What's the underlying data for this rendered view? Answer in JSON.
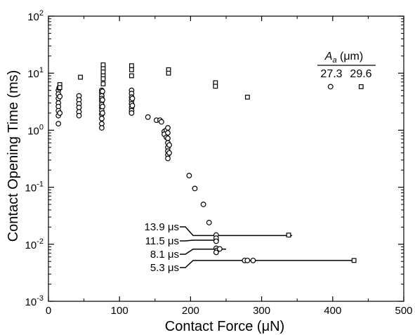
{
  "chart_data": {
    "type": "scatter",
    "xlabel": "Contact Force (μN)",
    "ylabel": "Contact Opening Time (ms)",
    "xlim": [
      0,
      500
    ],
    "ylim": [
      0.001,
      100
    ],
    "yscale": "log",
    "grid": false,
    "x_ticks": [
      {
        "value": 0,
        "label": "0"
      },
      {
        "value": 100,
        "label": "100"
      },
      {
        "value": 200,
        "label": "200"
      },
      {
        "value": 300,
        "label": "300"
      },
      {
        "value": 400,
        "label": "400"
      },
      {
        "value": 500,
        "label": "500"
      }
    ],
    "y_ticks": [
      {
        "value": 0.001,
        "base": "10",
        "exp": "-3"
      },
      {
        "value": 0.01,
        "base": "10",
        "exp": "-2"
      },
      {
        "value": 0.1,
        "base": "10",
        "exp": "-1"
      },
      {
        "value": 1,
        "base": "10",
        "exp": "0"
      },
      {
        "value": 10,
        "base": "10",
        "exp": "1"
      },
      {
        "value": 100,
        "base": "10",
        "exp": "2"
      }
    ],
    "legend": {
      "placement": "top-right",
      "title_italic": "A",
      "title_sub": "a",
      "title_unit": " (μm)",
      "entries": [
        {
          "label": "27.3",
          "marker": "circle"
        },
        {
          "label": "29.6",
          "marker": "square"
        }
      ]
    },
    "series": [
      {
        "marker": "circle",
        "points": [
          [
            14,
            5.0
          ],
          [
            14,
            4.3
          ],
          [
            14,
            3.6
          ],
          [
            14,
            3.0
          ],
          [
            14,
            2.6
          ],
          [
            14,
            2.2
          ],
          [
            14,
            1.8
          ],
          [
            14,
            1.3
          ],
          [
            15,
            5.5
          ],
          [
            16,
            3.9
          ],
          [
            16,
            2.0
          ],
          [
            43,
            4.0
          ],
          [
            43,
            3.4
          ],
          [
            43,
            2.9
          ],
          [
            43,
            2.5
          ],
          [
            43,
            2.1
          ],
          [
            43,
            1.8
          ],
          [
            75,
            5.0
          ],
          [
            75,
            4.5
          ],
          [
            75,
            4.0
          ],
          [
            75,
            3.6
          ],
          [
            75,
            3.2
          ],
          [
            75,
            2.8
          ],
          [
            75,
            2.5
          ],
          [
            75,
            2.2
          ],
          [
            75,
            1.9
          ],
          [
            75,
            1.6
          ],
          [
            75,
            1.3
          ],
          [
            75,
            1.1
          ],
          [
            76,
            4.8
          ],
          [
            76,
            3.4
          ],
          [
            76,
            2.6
          ],
          [
            76,
            2.0
          ],
          [
            117,
            5.0
          ],
          [
            117,
            4.4
          ],
          [
            117,
            3.8
          ],
          [
            117,
            3.3
          ],
          [
            117,
            2.9
          ],
          [
            117,
            2.5
          ],
          [
            117,
            2.2
          ],
          [
            117,
            2.0
          ],
          [
            118,
            3.6
          ],
          [
            118,
            2.7
          ],
          [
            140,
            1.7
          ],
          [
            152,
            1.5
          ],
          [
            157,
            1.5
          ],
          [
            159,
            1.4
          ],
          [
            163,
            0.95
          ],
          [
            163,
            0.85
          ],
          [
            166,
            1.0
          ],
          [
            166,
            0.75
          ],
          [
            168,
            1.1
          ],
          [
            168,
            0.9
          ],
          [
            168,
            0.72
          ],
          [
            168,
            0.6
          ],
          [
            168,
            0.5
          ],
          [
            168,
            0.43
          ],
          [
            168,
            0.37
          ],
          [
            168,
            0.32
          ],
          [
            170,
            0.55
          ],
          [
            170,
            0.4
          ],
          [
            198,
            0.16
          ],
          [
            206,
            0.095
          ],
          [
            218,
            0.05
          ],
          [
            226,
            0.024
          ],
          [
            236,
            0.0145
          ],
          [
            236,
            0.0128
          ],
          [
            236,
            0.0113
          ],
          [
            236,
            0.0085
          ],
          [
            237,
            0.0078
          ],
          [
            236,
            0.0072
          ],
          [
            241,
            0.0083
          ],
          [
            276,
            0.0052
          ],
          [
            280,
            0.0052
          ],
          [
            288,
            0.0052
          ],
          [
            397,
            5.8
          ]
        ]
      },
      {
        "marker": "square",
        "points": [
          [
            16,
            6.3
          ],
          [
            16,
            5.6
          ],
          [
            45,
            8.5
          ],
          [
            77,
            14.0
          ],
          [
            77,
            12.0
          ],
          [
            77,
            10.5
          ],
          [
            77,
            9.0
          ],
          [
            77,
            8.0
          ],
          [
            77,
            6.5
          ],
          [
            117,
            13.5
          ],
          [
            117,
            11.5
          ],
          [
            117,
            9.0
          ],
          [
            169,
            11.5
          ],
          [
            169,
            10.0
          ],
          [
            235,
            6.8
          ],
          [
            235,
            5.9
          ],
          [
            280,
            3.8
          ],
          [
            338,
            0.0145
          ],
          [
            430,
            0.0052
          ],
          [
            440,
            5.8
          ]
        ]
      }
    ],
    "annotations": [
      {
        "label": "13.9 μs",
        "line_x": [
          236,
          343
        ],
        "y": 0.0142
      },
      {
        "label": "11.5 μs",
        "line_x": [
          236,
          240
        ],
        "y": 0.0118
      },
      {
        "label": "8.1 μs",
        "line_x": [
          236,
          250
        ],
        "y": 0.0082
      },
      {
        "label": "5.3 μs",
        "line_x": [
          276,
          433
        ],
        "y": 0.0052
      }
    ]
  }
}
